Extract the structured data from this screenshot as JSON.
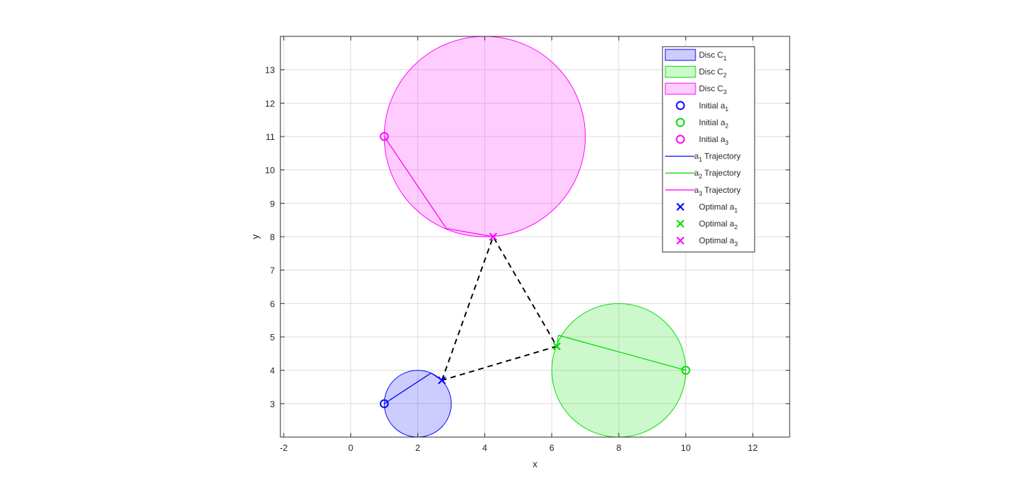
{
  "chart_data": {
    "type": "scatter",
    "xlabel": "x",
    "ylabel": "y",
    "xlim": [
      -2.1,
      13.1
    ],
    "ylim": [
      2.0,
      14.0
    ],
    "xticks": [
      -2,
      0,
      2,
      4,
      6,
      8,
      10,
      12
    ],
    "yticks": [
      3,
      4,
      5,
      6,
      7,
      8,
      9,
      10,
      11,
      12,
      13
    ],
    "grid": true,
    "legend_position": "top-right",
    "discs": [
      {
        "name": "Disc C",
        "sub": "1",
        "center": [
          2,
          3
        ],
        "radius": 1,
        "color": "#0000ff"
      },
      {
        "name": "Disc C",
        "sub": "2",
        "center": [
          8,
          4
        ],
        "radius": 2,
        "color": "#00dd00"
      },
      {
        "name": "Disc C",
        "sub": "3",
        "center": [
          4,
          11
        ],
        "radius": 3,
        "color": "#ff00ff"
      }
    ],
    "initial_points": [
      {
        "name": "Initial a",
        "sub": "1",
        "x": 1,
        "y": 3,
        "color": "#0000ff"
      },
      {
        "name": "Initial a",
        "sub": "2",
        "x": 10,
        "y": 4,
        "color": "#00dd00"
      },
      {
        "name": "Initial a",
        "sub": "3",
        "x": 1,
        "y": 11,
        "color": "#ff00ff"
      }
    ],
    "trajectories": [
      {
        "prefix": "a",
        "sub": "1",
        "suffix": " Trajectory",
        "color": "#0000ff",
        "points": [
          [
            1,
            3
          ],
          [
            2.4,
            3.92
          ],
          [
            2.72,
            3.7
          ]
        ]
      },
      {
        "prefix": "a",
        "sub": "2",
        "suffix": " Trajectory",
        "color": "#00dd00",
        "points": [
          [
            10,
            4
          ],
          [
            6.2,
            5.05
          ],
          [
            6.15,
            4.72
          ]
        ]
      },
      {
        "prefix": "a",
        "sub": "3",
        "suffix": " Trajectory",
        "color": "#ff00ff",
        "points": [
          [
            1,
            11
          ],
          [
            2.85,
            8.25
          ],
          [
            4.25,
            8.0
          ]
        ]
      }
    ],
    "optimal_points": [
      {
        "name": "Optimal a",
        "sub": "1",
        "x": 2.72,
        "y": 3.7,
        "color": "#0000ff"
      },
      {
        "name": "Optimal a",
        "sub": "2",
        "x": 6.15,
        "y": 4.72,
        "color": "#00dd00"
      },
      {
        "name": "Optimal a",
        "sub": "3",
        "x": 4.25,
        "y": 8.0,
        "color": "#ff00ff"
      }
    ],
    "connection_lines": {
      "style": "dashed",
      "color": "#000000",
      "points": [
        [
          2.72,
          3.7
        ],
        [
          4.25,
          8.0
        ],
        [
          6.15,
          4.72
        ],
        [
          2.72,
          3.7
        ]
      ]
    }
  }
}
